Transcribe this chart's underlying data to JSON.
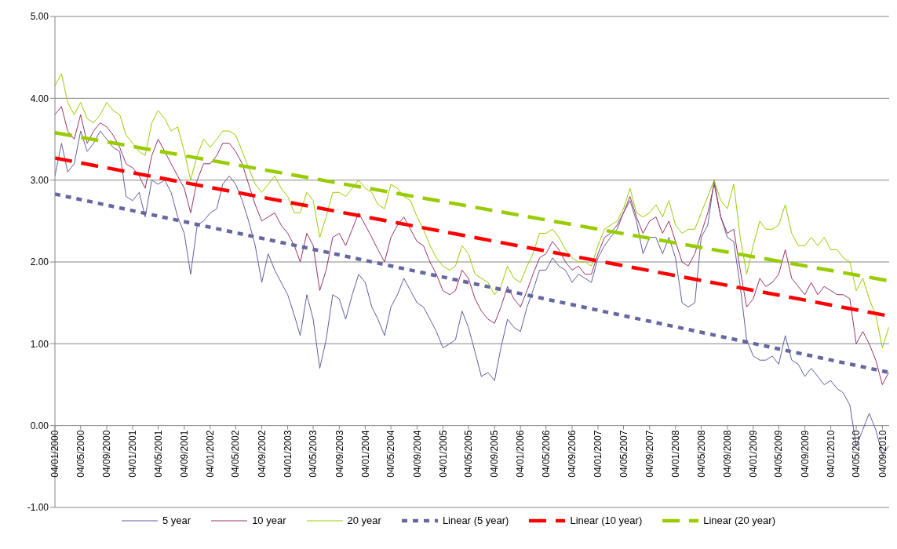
{
  "chart_data": {
    "type": "line",
    "legend": "bottom",
    "grid": "y",
    "xlim": [
      "2000-01-04",
      "2010-10-06"
    ],
    "ylim": [
      -1,
      5
    ],
    "yticks": [
      {
        "value": -1,
        "label": "-1.00"
      },
      {
        "value": 0,
        "label": "0.00"
      },
      {
        "value": 1,
        "label": "1.00"
      },
      {
        "value": 2,
        "label": "2.00"
      },
      {
        "value": 3,
        "label": "3.00"
      },
      {
        "value": 4,
        "label": "4.00"
      },
      {
        "value": 5,
        "label": "5.00"
      }
    ],
    "xticks": [
      {
        "value": "2000-01-04",
        "label": "04/01/2000"
      },
      {
        "value": "2000-05-04",
        "label": "04/05/2000"
      },
      {
        "value": "2000-09-04",
        "label": "04/09/2000"
      },
      {
        "value": "2001-01-04",
        "label": "04/01/2001"
      },
      {
        "value": "2001-05-04",
        "label": "04/05/2001"
      },
      {
        "value": "2001-09-04",
        "label": "04/09/2001"
      },
      {
        "value": "2002-01-04",
        "label": "04/01/2002"
      },
      {
        "value": "2002-05-04",
        "label": "04/05/2002"
      },
      {
        "value": "2002-09-04",
        "label": "04/09/2002"
      },
      {
        "value": "2003-01-04",
        "label": "04/01/2003"
      },
      {
        "value": "2003-05-04",
        "label": "04/05/2003"
      },
      {
        "value": "2003-09-04",
        "label": "04/09/2003"
      },
      {
        "value": "2004-01-04",
        "label": "04/01/2004"
      },
      {
        "value": "2004-05-04",
        "label": "04/05/2004"
      },
      {
        "value": "2004-09-04",
        "label": "04/09/2004"
      },
      {
        "value": "2005-01-04",
        "label": "04/01/2005"
      },
      {
        "value": "2005-05-04",
        "label": "04/05/2005"
      },
      {
        "value": "2005-09-04",
        "label": "04/09/2005"
      },
      {
        "value": "2006-01-04",
        "label": "04/01/2006"
      },
      {
        "value": "2006-05-04",
        "label": "04/05/2006"
      },
      {
        "value": "2006-09-04",
        "label": "04/09/2006"
      },
      {
        "value": "2007-01-04",
        "label": "04/01/2007"
      },
      {
        "value": "2007-05-04",
        "label": "04/05/2007"
      },
      {
        "value": "2007-09-04",
        "label": "04/09/2007"
      },
      {
        "value": "2008-01-04",
        "label": "04/01/2008"
      },
      {
        "value": "2008-05-04",
        "label": "04/05/2008"
      },
      {
        "value": "2008-09-04",
        "label": "04/09/2008"
      },
      {
        "value": "2009-01-04",
        "label": "04/01/2009"
      },
      {
        "value": "2009-05-04",
        "label": "04/05/2009"
      },
      {
        "value": "2009-09-04",
        "label": "04/09/2009"
      },
      {
        "value": "2010-01-04",
        "label": "04/01/2010"
      },
      {
        "value": "2010-05-04",
        "label": "04/05/2010"
      },
      {
        "value": "2010-09-04",
        "label": "04/09/2010"
      }
    ],
    "x": [
      "2000-01-04",
      "2000-02-04",
      "2000-03-04",
      "2000-04-04",
      "2000-05-04",
      "2000-06-04",
      "2000-07-04",
      "2000-08-04",
      "2000-09-04",
      "2000-10-04",
      "2000-11-04",
      "2000-12-04",
      "2001-01-04",
      "2001-02-04",
      "2001-03-04",
      "2001-04-04",
      "2001-05-04",
      "2001-06-04",
      "2001-07-04",
      "2001-08-04",
      "2001-09-04",
      "2001-10-04",
      "2001-11-04",
      "2001-12-04",
      "2002-01-04",
      "2002-02-04",
      "2002-03-04",
      "2002-04-04",
      "2002-05-04",
      "2002-06-04",
      "2002-07-04",
      "2002-08-04",
      "2002-09-04",
      "2002-10-04",
      "2002-11-04",
      "2002-12-04",
      "2003-01-04",
      "2003-02-04",
      "2003-03-04",
      "2003-04-04",
      "2003-05-04",
      "2003-06-04",
      "2003-07-04",
      "2003-08-04",
      "2003-09-04",
      "2003-10-04",
      "2003-11-04",
      "2003-12-04",
      "2004-01-04",
      "2004-02-04",
      "2004-03-04",
      "2004-04-04",
      "2004-05-04",
      "2004-06-04",
      "2004-07-04",
      "2004-08-04",
      "2004-09-04",
      "2004-10-04",
      "2004-11-04",
      "2004-12-04",
      "2005-01-04",
      "2005-02-04",
      "2005-03-04",
      "2005-04-04",
      "2005-05-04",
      "2005-06-04",
      "2005-07-04",
      "2005-08-04",
      "2005-09-04",
      "2005-10-04",
      "2005-11-04",
      "2005-12-04",
      "2006-01-04",
      "2006-02-04",
      "2006-03-04",
      "2006-04-04",
      "2006-05-04",
      "2006-06-04",
      "2006-07-04",
      "2006-08-04",
      "2006-09-04",
      "2006-10-04",
      "2006-11-04",
      "2006-12-04",
      "2007-01-04",
      "2007-02-04",
      "2007-03-04",
      "2007-04-04",
      "2007-05-04",
      "2007-06-04",
      "2007-07-04",
      "2007-08-04",
      "2007-09-04",
      "2007-10-04",
      "2007-11-04",
      "2007-12-04",
      "2008-01-04",
      "2008-02-04",
      "2008-03-04",
      "2008-04-04",
      "2008-05-04",
      "2008-06-04",
      "2008-07-04",
      "2008-08-04",
      "2008-09-04",
      "2008-10-04",
      "2008-11-04",
      "2008-12-04",
      "2009-01-04",
      "2009-02-04",
      "2009-03-04",
      "2009-04-04",
      "2009-05-04",
      "2009-06-04",
      "2009-07-04",
      "2009-08-04",
      "2009-09-04",
      "2009-10-04",
      "2009-11-04",
      "2009-12-04",
      "2010-01-04",
      "2010-02-04",
      "2010-03-04",
      "2010-04-04",
      "2010-05-04",
      "2010-06-04",
      "2010-07-04",
      "2010-08-04",
      "2010-09-04",
      "2010-10-04"
    ],
    "series": [
      {
        "name": "5 year",
        "color": "#5f5f9e",
        "line_style": "solid",
        "values": [
          3.05,
          3.45,
          3.1,
          3.2,
          3.6,
          3.35,
          3.45,
          3.6,
          3.5,
          3.4,
          3.35,
          2.8,
          2.75,
          2.85,
          2.55,
          3.0,
          2.95,
          3.0,
          2.85,
          2.55,
          2.35,
          1.85,
          2.45,
          2.5,
          2.6,
          2.65,
          2.95,
          3.05,
          2.95,
          2.75,
          2.5,
          2.2,
          1.75,
          2.1,
          1.9,
          1.75,
          1.6,
          1.35,
          1.1,
          1.6,
          1.3,
          0.7,
          1.05,
          1.6,
          1.55,
          1.3,
          1.6,
          1.85,
          1.75,
          1.45,
          1.3,
          1.1,
          1.45,
          1.6,
          1.8,
          1.65,
          1.5,
          1.45,
          1.3,
          1.15,
          0.95,
          1.0,
          1.05,
          1.4,
          1.2,
          0.9,
          0.6,
          0.65,
          0.55,
          0.95,
          1.3,
          1.2,
          1.15,
          1.45,
          1.65,
          1.9,
          1.9,
          2.05,
          1.95,
          1.9,
          1.75,
          1.85,
          1.8,
          1.75,
          2.05,
          2.2,
          2.3,
          2.4,
          2.6,
          2.75,
          2.5,
          2.1,
          2.3,
          2.3,
          2.1,
          2.3,
          2.05,
          1.5,
          1.45,
          1.5,
          2.3,
          2.45,
          3.0,
          2.55,
          2.3,
          2.25,
          1.7,
          1.05,
          0.85,
          0.8,
          0.8,
          0.85,
          0.75,
          1.1,
          0.8,
          0.75,
          0.6,
          0.7,
          0.6,
          0.5,
          0.55,
          0.45,
          0.4,
          0.25,
          -0.25,
          -0.05,
          0.15,
          -0.05,
          -0.35,
          -0.25
        ]
      },
      {
        "name": "10 year",
        "color": "#993366",
        "line_style": "solid",
        "values": [
          3.8,
          3.9,
          3.6,
          3.5,
          3.8,
          3.45,
          3.6,
          3.7,
          3.65,
          3.55,
          3.4,
          3.2,
          3.15,
          3.05,
          2.9,
          3.3,
          3.5,
          3.35,
          3.2,
          3.05,
          2.9,
          2.6,
          3.0,
          3.2,
          3.2,
          3.3,
          3.45,
          3.45,
          3.35,
          3.2,
          2.95,
          2.7,
          2.5,
          2.55,
          2.6,
          2.45,
          2.35,
          2.2,
          2.0,
          2.35,
          2.2,
          1.65,
          1.9,
          2.3,
          2.35,
          2.2,
          2.4,
          2.6,
          2.45,
          2.3,
          2.15,
          2.0,
          2.3,
          2.45,
          2.55,
          2.4,
          2.25,
          2.2,
          2.0,
          1.85,
          1.65,
          1.6,
          1.65,
          1.9,
          1.8,
          1.55,
          1.4,
          1.3,
          1.25,
          1.45,
          1.7,
          1.55,
          1.45,
          1.65,
          1.85,
          2.05,
          2.1,
          2.25,
          2.15,
          2.0,
          1.9,
          1.95,
          1.85,
          1.85,
          2.1,
          2.3,
          2.35,
          2.45,
          2.6,
          2.8,
          2.55,
          2.35,
          2.5,
          2.55,
          2.35,
          2.5,
          2.25,
          2.0,
          1.95,
          2.1,
          2.35,
          2.6,
          2.95,
          2.55,
          2.35,
          2.4,
          1.9,
          1.45,
          1.55,
          1.8,
          1.7,
          1.75,
          1.85,
          2.15,
          1.8,
          1.7,
          1.6,
          1.75,
          1.6,
          1.7,
          1.65,
          1.6,
          1.6,
          1.55,
          1.0,
          1.15,
          1.0,
          0.8,
          0.5,
          0.65
        ]
      },
      {
        "name": "20 year",
        "color": "#99cc00",
        "line_style": "solid",
        "values": [
          4.15,
          4.3,
          3.95,
          3.8,
          3.95,
          3.75,
          3.7,
          3.8,
          3.95,
          3.85,
          3.8,
          3.55,
          3.45,
          3.35,
          3.3,
          3.7,
          3.85,
          3.75,
          3.6,
          3.65,
          3.35,
          3.0,
          3.3,
          3.5,
          3.4,
          3.5,
          3.6,
          3.6,
          3.55,
          3.35,
          3.15,
          2.95,
          2.85,
          2.95,
          3.05,
          2.9,
          2.8,
          2.6,
          2.6,
          2.85,
          2.75,
          2.3,
          2.55,
          2.85,
          2.85,
          2.8,
          2.9,
          3.0,
          2.9,
          2.85,
          2.7,
          2.65,
          2.95,
          2.9,
          2.8,
          2.75,
          2.55,
          2.4,
          2.2,
          2.05,
          1.95,
          1.9,
          1.95,
          2.2,
          2.1,
          1.85,
          1.8,
          1.75,
          1.6,
          1.7,
          1.95,
          1.8,
          1.75,
          1.95,
          2.1,
          2.35,
          2.35,
          2.4,
          2.3,
          2.15,
          2.05,
          2.0,
          2.0,
          1.95,
          2.2,
          2.4,
          2.45,
          2.5,
          2.65,
          2.9,
          2.6,
          2.55,
          2.6,
          2.7,
          2.55,
          2.75,
          2.45,
          2.35,
          2.4,
          2.4,
          2.6,
          2.8,
          3.0,
          2.75,
          2.65,
          2.95,
          2.3,
          1.85,
          2.2,
          2.5,
          2.4,
          2.4,
          2.45,
          2.7,
          2.35,
          2.2,
          2.2,
          2.3,
          2.2,
          2.3,
          2.15,
          2.15,
          2.05,
          2.0,
          1.65,
          1.8,
          1.55,
          1.35,
          0.95,
          1.2
        ]
      },
      {
        "name": "Linear (5 year)",
        "color": "#6666a0",
        "line_style": "dotted",
        "x": [
          "2000-01-04",
          "2010-10-04"
        ],
        "values": [
          2.83,
          0.65
        ]
      },
      {
        "name": "Linear (10 year)",
        "color": "#ff0000",
        "line_style": "dashed",
        "x": [
          "2000-01-04",
          "2010-10-04"
        ],
        "values": [
          3.27,
          1.34
        ]
      },
      {
        "name": "Linear (20 year)",
        "color": "#99cc00",
        "line_style": "dashed",
        "x": [
          "2000-01-04",
          "2010-10-04"
        ],
        "values": [
          3.58,
          1.77
        ]
      }
    ]
  }
}
